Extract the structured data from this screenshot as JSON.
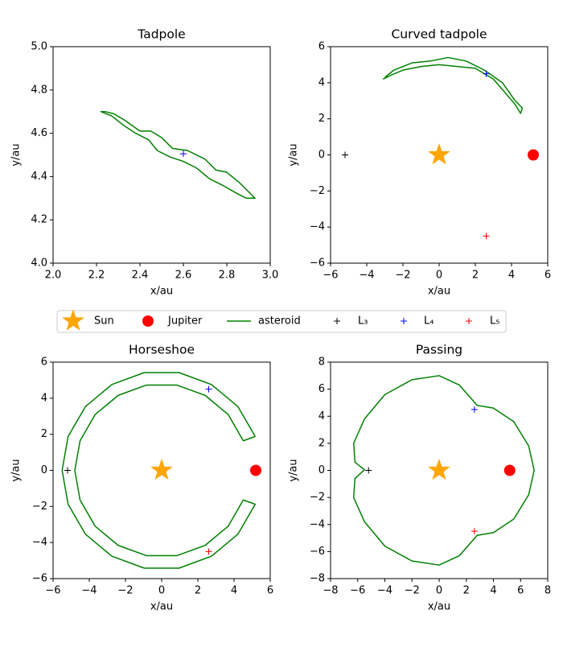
{
  "chart_data": [
    {
      "type": "line",
      "title": "Tadpole",
      "xlabel": "x/au",
      "ylabel": "y/au",
      "xlim": [
        2,
        3
      ],
      "ylim": [
        4,
        5
      ],
      "xticks": [
        {
          "value": 2,
          "label": "2.0"
        },
        {
          "value": 2.2,
          "label": "2.2"
        },
        {
          "value": 2.4,
          "label": "2.4"
        },
        {
          "value": 2.6,
          "label": "2.6"
        },
        {
          "value": 2.8,
          "label": "2.8"
        },
        {
          "value": 3,
          "label": "3.0"
        }
      ],
      "yticks": [
        {
          "value": 4,
          "label": "4.0"
        },
        {
          "value": 4.2,
          "label": "4.2"
        },
        {
          "value": 4.4,
          "label": "4.4"
        },
        {
          "value": 4.6,
          "label": "4.6"
        },
        {
          "value": 4.8,
          "label": "4.8"
        },
        {
          "value": 5,
          "label": "5.0"
        }
      ],
      "series": [
        {
          "name": "asteroid",
          "color": "green",
          "marker": "line",
          "x": [
            2.24,
            2.28,
            2.33,
            2.4,
            2.45,
            2.5,
            2.55,
            2.62,
            2.7,
            2.75,
            2.8,
            2.86,
            2.9,
            2.93,
            2.89,
            2.85,
            2.78,
            2.72,
            2.66,
            2.6,
            2.54,
            2.48,
            2.44,
            2.38,
            2.32,
            2.27,
            2.22,
            2.24
          ],
          "y": [
            4.7,
            4.69,
            4.66,
            4.61,
            4.61,
            4.58,
            4.53,
            4.52,
            4.48,
            4.43,
            4.42,
            4.37,
            4.33,
            4.3,
            4.3,
            4.32,
            4.36,
            4.39,
            4.44,
            4.47,
            4.49,
            4.52,
            4.57,
            4.6,
            4.64,
            4.68,
            4.7,
            4.7
          ]
        },
        {
          "name": "L₄",
          "color": "blue",
          "marker": "plus",
          "x": [
            2.6
          ],
          "y": [
            4.505
          ]
        }
      ]
    },
    {
      "type": "line",
      "title": "Curved tadpole",
      "xlabel": "x/au",
      "ylabel": "y/au",
      "xlim": [
        -6,
        6
      ],
      "ylim": [
        -6,
        6
      ],
      "xticks": [
        {
          "value": -6,
          "label": "−6"
        },
        {
          "value": -4,
          "label": "−4"
        },
        {
          "value": -2,
          "label": "−2"
        },
        0,
        2,
        4,
        6
      ],
      "yticks": [
        {
          "value": -6,
          "label": "−6"
        },
        {
          "value": -4,
          "label": "−4"
        },
        {
          "value": -2,
          "label": "−2"
        },
        0,
        2,
        4,
        6
      ],
      "series": [
        {
          "name": "Sun",
          "color": "orange",
          "marker": "star",
          "x": [
            0
          ],
          "y": [
            0
          ]
        },
        {
          "name": "Jupiter",
          "color": "red",
          "marker": "circle",
          "x": [
            5.2
          ],
          "y": [
            0
          ]
        },
        {
          "name": "asteroid",
          "color": "green",
          "marker": "line",
          "x": [
            -3,
            -2.5,
            -2,
            -1.5,
            -0.5,
            0.5,
            1.5,
            2.5,
            3.5,
            4.2,
            4.6,
            4.5,
            4.2,
            3.6,
            3,
            2,
            1,
            0,
            -1,
            -2,
            -2.7,
            -3.1
          ],
          "y": [
            4.3,
            4.7,
            4.9,
            5.1,
            5.2,
            5.4,
            5.2,
            4.7,
            4,
            3,
            2.6,
            2.3,
            2.8,
            3.5,
            4.2,
            4.8,
            4.9,
            5,
            4.9,
            4.7,
            4.4,
            4.2
          ]
        },
        {
          "name": "L₃",
          "color": "black",
          "marker": "plus",
          "x": [
            -5.2
          ],
          "y": [
            0
          ]
        },
        {
          "name": "L₄",
          "color": "blue",
          "marker": "plus",
          "x": [
            2.6
          ],
          "y": [
            4.5
          ]
        },
        {
          "name": "L₅",
          "color": "red",
          "marker": "plus",
          "x": [
            2.6
          ],
          "y": [
            -4.5
          ]
        }
      ]
    },
    {
      "type": "line",
      "title": "Horseshoe",
      "xlabel": "x/au",
      "ylabel": "y/au",
      "xlim": [
        -6,
        6
      ],
      "ylim": [
        -6,
        6
      ],
      "xticks": [
        {
          "value": -6,
          "label": "−6"
        },
        {
          "value": -4,
          "label": "−4"
        },
        {
          "value": -2,
          "label": "−2"
        },
        0,
        2,
        4,
        6
      ],
      "yticks": [
        {
          "value": -6,
          "label": "−6"
        },
        {
          "value": -4,
          "label": "−4"
        },
        {
          "value": -2,
          "label": "−2"
        },
        0,
        2,
        4,
        6
      ],
      "series": [
        {
          "name": "Sun",
          "color": "orange",
          "marker": "star",
          "x": [
            0
          ],
          "y": [
            0
          ]
        },
        {
          "name": "Jupiter",
          "color": "red",
          "marker": "circle",
          "x": [
            5.2
          ],
          "y": [
            0
          ]
        },
        {
          "name": "asteroid",
          "color": "green",
          "marker": "line",
          "x": [
            5.17,
            4.21,
            2.75,
            0.96,
            -0.96,
            -2.75,
            -4.21,
            -5.17,
            -5.5,
            -5.17,
            -4.21,
            -2.75,
            -0.96,
            0.96,
            2.75,
            4.21,
            5.17,
            4.51,
            3.68,
            2.4,
            0.83,
            -0.83,
            -2.4,
            -3.68,
            -4.51,
            -4.8,
            -4.51,
            -3.68,
            -2.4,
            -0.83,
            0.83,
            2.4,
            3.68,
            4.51,
            5.17
          ],
          "y": [
            1.88,
            3.54,
            4.76,
            5.42,
            5.42,
            4.76,
            3.54,
            1.88,
            0,
            -1.88,
            -3.54,
            -4.76,
            -5.42,
            -5.42,
            -4.76,
            -3.54,
            -1.88,
            -1.64,
            -3.09,
            -4.16,
            -4.73,
            -4.73,
            -4.16,
            -3.09,
            -1.64,
            0,
            1.64,
            3.09,
            4.16,
            4.73,
            4.73,
            4.16,
            3.09,
            1.64,
            1.88
          ]
        },
        {
          "name": "L₃",
          "color": "black",
          "marker": "plus",
          "x": [
            -5.2
          ],
          "y": [
            0
          ]
        },
        {
          "name": "L₄",
          "color": "blue",
          "marker": "plus",
          "x": [
            2.6
          ],
          "y": [
            4.5
          ]
        },
        {
          "name": "L₅",
          "color": "red",
          "marker": "plus",
          "x": [
            2.6
          ],
          "y": [
            -4.5
          ]
        }
      ]
    },
    {
      "type": "line",
      "title": "Passing",
      "xlabel": "x/au",
      "ylabel": "y/au",
      "xlim": [
        -8,
        8
      ],
      "ylim": [
        -8,
        8
      ],
      "xticks": [
        {
          "value": -8,
          "label": "−8"
        },
        {
          "value": -6,
          "label": "−6"
        },
        {
          "value": -4,
          "label": "−4"
        },
        {
          "value": -2,
          "label": "−2"
        },
        0,
        2,
        4,
        6,
        8
      ],
      "yticks": [
        {
          "value": -8,
          "label": "−8"
        },
        {
          "value": -6,
          "label": "−6"
        },
        {
          "value": -4,
          "label": "−4"
        },
        {
          "value": -2,
          "label": "−2"
        },
        0,
        2,
        4,
        6,
        8
      ],
      "series": [
        {
          "name": "Sun",
          "color": "orange",
          "marker": "star",
          "x": [
            0
          ],
          "y": [
            0
          ]
        },
        {
          "name": "Jupiter",
          "color": "red",
          "marker": "circle",
          "x": [
            5.2
          ],
          "y": [
            0
          ]
        },
        {
          "name": "asteroid",
          "color": "green",
          "marker": "line",
          "x": [
            2.8,
            1.5,
            0,
            -2,
            -4,
            -5.5,
            -6.3,
            -6.2,
            -5.5,
            -6.2,
            -6.3,
            -5.5,
            -4,
            -2,
            0,
            1.5,
            2.8,
            4,
            5.5,
            6.6,
            7,
            6.6,
            5.5,
            4,
            2.8
          ],
          "y": [
            4.8,
            6.3,
            7,
            6.7,
            5.6,
            3.8,
            2,
            0.6,
            0.05,
            -0.6,
            -2,
            -3.8,
            -5.6,
            -6.7,
            -7,
            -6.3,
            -4.8,
            -4.6,
            -3.6,
            -1.8,
            0,
            1.8,
            3.6,
            4.6,
            4.8
          ]
        },
        {
          "name": "L₃",
          "color": "black",
          "marker": "plus",
          "x": [
            -5.2
          ],
          "y": [
            0
          ]
        },
        {
          "name": "L₄",
          "color": "blue",
          "marker": "plus",
          "x": [
            2.6
          ],
          "y": [
            4.5
          ]
        },
        {
          "name": "L₅",
          "color": "red",
          "marker": "plus",
          "x": [
            2.6
          ],
          "y": [
            -4.5
          ]
        }
      ]
    }
  ]
}
